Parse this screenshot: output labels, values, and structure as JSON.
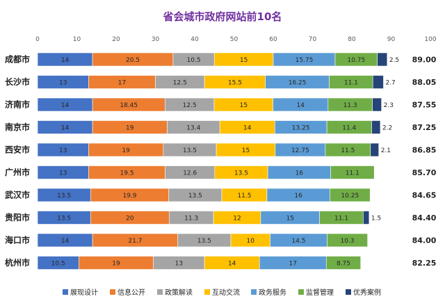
{
  "chart_data": {
    "type": "bar",
    "orientation": "horizontal",
    "stacked": true,
    "title": "省会城市政府网站前10名",
    "categories": [
      "成都市",
      "长沙市",
      "济南市",
      "南京市",
      "西安市",
      "广州市",
      "武汉市",
      "贵阳市",
      "海口市",
      "杭州市"
    ],
    "series": [
      {
        "name": "展现设计",
        "color": "#4472c4",
        "values": [
          14,
          13,
          14,
          14,
          13,
          13,
          13.5,
          13.5,
          14,
          10.5
        ]
      },
      {
        "name": "信息公开",
        "color": "#ed7d31",
        "values": [
          20.5,
          17,
          18.45,
          19,
          19,
          19.5,
          19.9,
          20,
          21.7,
          19
        ]
      },
      {
        "name": "政策解读",
        "color": "#a5a5a5",
        "values": [
          10.5,
          12.5,
          12.5,
          13.4,
          13.5,
          12.6,
          13.5,
          11.3,
          13.5,
          13
        ]
      },
      {
        "name": "互动交流",
        "color": "#ffc000",
        "values": [
          15,
          15.5,
          15,
          14,
          15,
          13.5,
          11.5,
          12,
          10,
          14
        ]
      },
      {
        "name": "政务服务",
        "color": "#5b9bd5",
        "values": [
          15.75,
          16.25,
          14,
          13.25,
          12.75,
          16,
          16,
          15,
          14.5,
          17
        ]
      },
      {
        "name": "监督管理",
        "color": "#70ad47",
        "values": [
          10.75,
          11.1,
          11.3,
          11.4,
          11.5,
          11.1,
          10.25,
          11.1,
          10.3,
          8.75
        ]
      },
      {
        "name": "优秀案例",
        "color": "#264478",
        "values": [
          2.5,
          2.7,
          2.3,
          2.2,
          2.1,
          0,
          0,
          1.5,
          0,
          0
        ]
      }
    ],
    "value_labels": [
      [
        "14",
        "20.5",
        "10.5",
        "15",
        "15.75",
        "10.75",
        "2.5"
      ],
      [
        "13",
        "17",
        "12.5",
        "15.5",
        "16.25",
        "11.1",
        "2.7"
      ],
      [
        "14",
        "18.45",
        "12.5",
        "15",
        "14",
        "11.3",
        "2.3"
      ],
      [
        "14",
        "19",
        "13.4",
        "14",
        "13.25",
        "11.4",
        "2.2"
      ],
      [
        "13",
        "19",
        "13.5",
        "15",
        "12.75",
        "11.5",
        "2.1"
      ],
      [
        "13",
        "19.5",
        "12.6",
        "13.5",
        "16",
        "11.1",
        ""
      ],
      [
        "13.5",
        "19.9",
        "13.5",
        "11.5",
        "16",
        "10.25",
        ""
      ],
      [
        "13.5",
        "20",
        "11.3",
        "12",
        "15",
        "11.1",
        "1.5"
      ],
      [
        "14",
        "21.7",
        "13.5",
        "10",
        "14.5",
        "10.3",
        ""
      ],
      [
        "10.5",
        "19",
        "13",
        "14",
        "17",
        "8.75",
        ""
      ]
    ],
    "totals": [
      "89.00",
      "88.05",
      "87.55",
      "87.25",
      "86.85",
      "85.70",
      "84.65",
      "84.40",
      "84.00",
      "82.25"
    ],
    "xlim": [
      0,
      100
    ],
    "xticks": [
      "0",
      "10",
      "20",
      "30",
      "40",
      "50",
      "60",
      "70",
      "80",
      "90",
      "100"
    ],
    "xaxis_position": "top",
    "grid": false,
    "legend_position": "bottom"
  }
}
